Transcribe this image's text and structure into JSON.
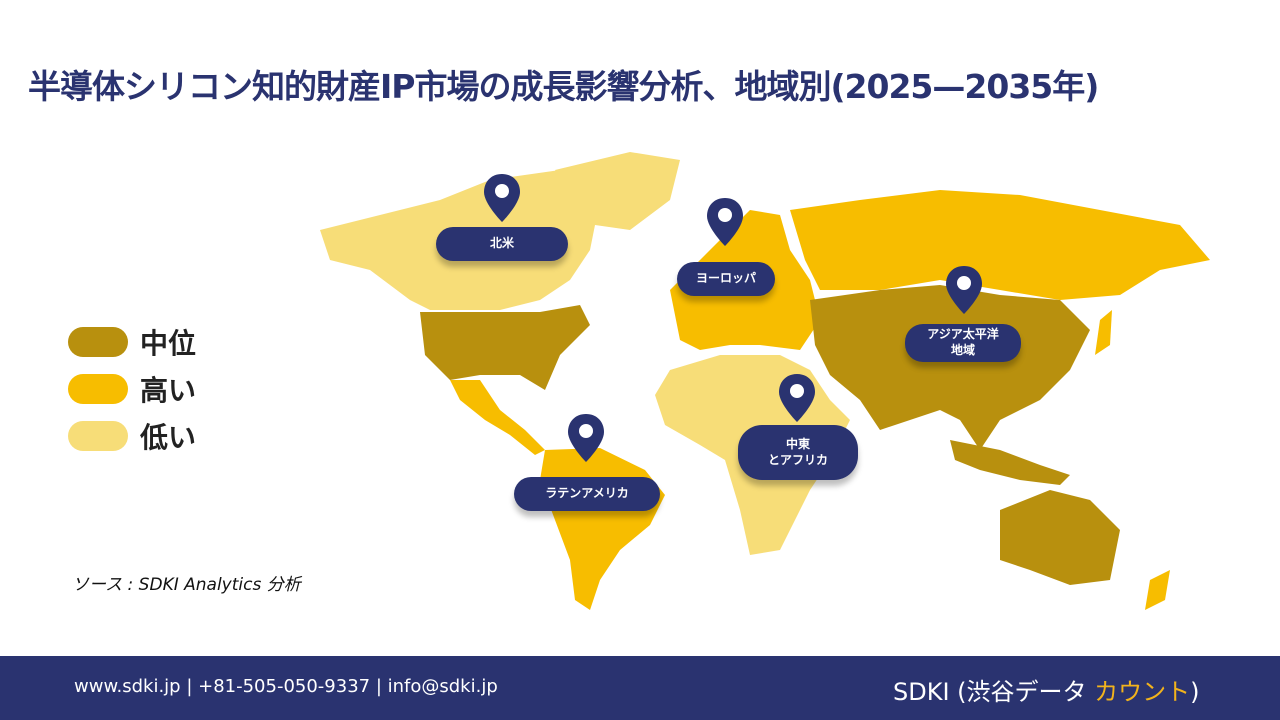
{
  "title": "半導体シリコン知的財産IP市場の成長影響分析、地域別(2025—2035年)",
  "legend": [
    {
      "label": "中位",
      "color": "#b8900e"
    },
    {
      "label": "高い",
      "color": "#f7bd00"
    },
    {
      "label": "低い",
      "color": "#f7dd78"
    }
  ],
  "regions": [
    {
      "label": "北米",
      "level": "低い"
    },
    {
      "label": "ヨーロッパ",
      "level": "高い"
    },
    {
      "label": "アジア太平洋\n地域",
      "level": "中位"
    },
    {
      "label": "中東\nとアフリカ",
      "level": "低い"
    },
    {
      "label": "ラテンアメリカ",
      "level": "高い"
    }
  ],
  "source": "ソース : SDKI Analytics 分析",
  "footer": {
    "contact": "www.sdki.jp | +81-505-050-9337 | info@sdki.jp",
    "brand_main": "SDKI (渋谷データ ",
    "brand_accent": "カウント",
    "brand_end": ")"
  },
  "colors": {
    "navy": "#2a3370",
    "accent": "#f2b31c"
  }
}
